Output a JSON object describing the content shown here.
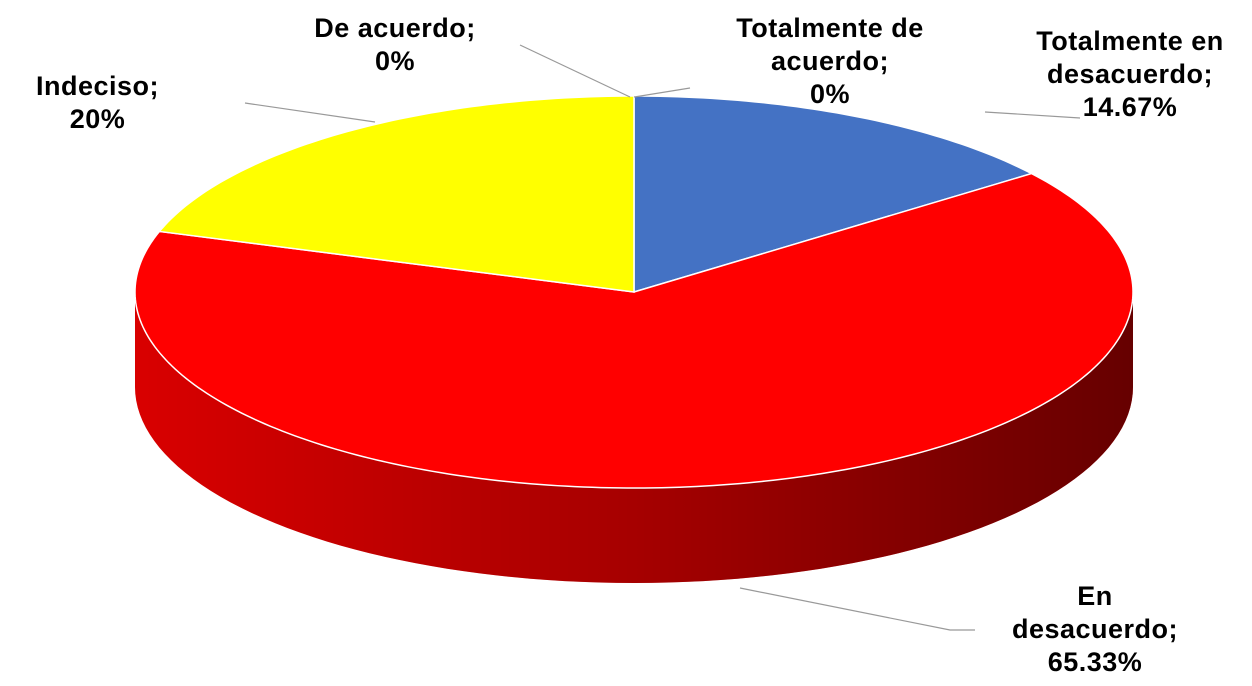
{
  "chart_data": {
    "type": "pie",
    "categories": [
      "Totalmente en desacuerdo;",
      "En desacuerdo;",
      "Indeciso;",
      "De acuerdo;",
      "Totalmente de acuerdo;"
    ],
    "values": [
      14.67,
      65.33,
      20,
      0,
      0
    ],
    "value_labels": [
      "14.67%",
      "65.33%",
      "20%",
      "0%",
      "0%"
    ],
    "colors": [
      "#4472c4",
      "#ff0000",
      "#ffff00",
      "#a5a5a5",
      "#70ad47"
    ]
  }
}
